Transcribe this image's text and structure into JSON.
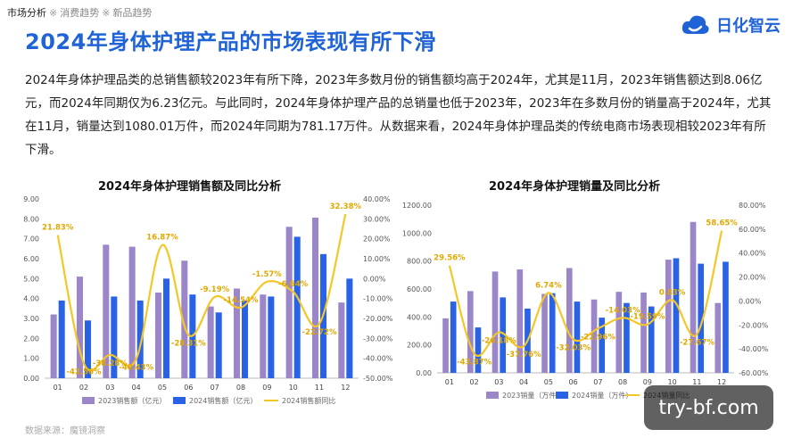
{
  "breadcrumb": {
    "current": "市场分析",
    "sep1": "※",
    "item2": "消费趋势",
    "sep2": "※",
    "item3": "新品趋势"
  },
  "title": "2024年身体护理产品的市场表现有所下滑",
  "logo": {
    "text": "日化智云"
  },
  "paragraph": "2024年身体护理品类的总销售额较2023年有所下降，2023年多数月份的销售额均高于2024年，尤其是11月，2023年销售额达到8.06亿元，而2024年同期仅为6.23亿元。与此同时，2024年身体护理产品的总销量也低于2023年，2023年在多数月份的销量高于2024年，尤其在11月，销量达到1080.01万件，而2024年同期为781.17万件。从数据来看，2024年身体护理品类的传统电商市场表现相较2023年有所下滑。",
  "source": "数据来源：魔镜洞察",
  "watermark": "try-bf.com",
  "colors": {
    "title_blue": "#1f63d6",
    "series_2023": "#9b86c9",
    "series_2024": "#2a62e6",
    "yoy_line": "#f3c727"
  },
  "chart_data": [
    {
      "type": "bar",
      "title": "2024年身体护理销售额及同比分析",
      "categories": [
        "01",
        "02",
        "03",
        "04",
        "05",
        "06",
        "07",
        "08",
        "09",
        "10",
        "11",
        "12"
      ],
      "series": [
        {
          "name": "2023销售额（亿元）",
          "type": "bar",
          "values": [
            3.2,
            5.1,
            6.7,
            6.6,
            4.3,
            5.9,
            3.6,
            4.5,
            4.2,
            7.6,
            8.06,
            3.8
          ]
        },
        {
          "name": "2024销售额（亿元）",
          "type": "bar",
          "values": [
            3.9,
            2.9,
            4.1,
            3.9,
            5.0,
            4.2,
            3.3,
            3.9,
            4.1,
            7.1,
            6.23,
            5.0
          ]
        },
        {
          "name": "2024销售额同比",
          "type": "line",
          "axis": "right",
          "values": [
            21.83,
            -42.56,
            -38.28,
            -40.43,
            16.87,
            -28.31,
            -9.19,
            -14.54,
            -1.57,
            -6.64,
            -22.72,
            32.38
          ]
        }
      ],
      "data_labels": [
        "21.83%",
        "-42.56%",
        "-38.28%",
        "-40.43%",
        "16.87%",
        "-28.31%",
        "-9.19%",
        "-14.54%",
        "-1.57%",
        "-6.64%",
        "-22.72%",
        "32.38%"
      ],
      "y_left": {
        "min": 0,
        "max": 9,
        "ticks": [
          "0.00",
          "1.00",
          "2.00",
          "3.00",
          "4.00",
          "5.00",
          "6.00",
          "7.00",
          "8.00",
          "9.00"
        ]
      },
      "y_right": {
        "min": -50,
        "max": 40,
        "ticks": [
          "-50.00%",
          "-40.00%",
          "-30.00%",
          "-20.00%",
          "-10.00%",
          "0.00%",
          "10.00%",
          "20.00%",
          "30.00%",
          "40.00%"
        ]
      },
      "legend_position": "bottom",
      "grid": false
    },
    {
      "type": "bar",
      "title": "2024年身体护理销量及同比分析",
      "categories": [
        "01",
        "02",
        "03",
        "04",
        "05",
        "06",
        "07",
        "08",
        "09",
        "10",
        "11",
        "12"
      ],
      "series": [
        {
          "name": "2023销量（万件）",
          "type": "bar",
          "values": [
            390,
            585,
            725,
            740,
            565,
            750,
            525,
            580,
            575,
            810,
            1080.01,
            500
          ]
        },
        {
          "name": "2024销量（万件）",
          "type": "bar",
          "values": [
            510,
            325,
            540,
            460,
            570,
            510,
            395,
            500,
            475,
            820,
            781.17,
            795
          ]
        },
        {
          "name": "2024销量同比",
          "type": "line",
          "axis": "right",
          "values": [
            29.56,
            -43.87,
            -26.18,
            -37.76,
            6.74,
            -32.03,
            -22.96,
            -14.03,
            -19.59,
            0.83,
            -27.67,
            58.65
          ]
        }
      ],
      "data_labels": [
        "29.56%",
        "-43.87%",
        "-26.18%",
        "-37.76%",
        "6.74%",
        "-32.03%",
        "-22.96%",
        "-14.03%",
        "-19.59%",
        "0.83%",
        "-27.67%",
        "58.65%"
      ],
      "y_left": {
        "min": 0,
        "max": 1200,
        "ticks": [
          "0.00",
          "200.00",
          "400.00",
          "600.00",
          "800.00",
          "1000.00",
          "1200.00"
        ]
      },
      "y_right": {
        "min": -60,
        "max": 80,
        "ticks": [
          "-60.00%",
          "-40.00%",
          "-20.00%",
          "0.00%",
          "20.00%",
          "40.00%",
          "60.00%",
          "80.00%"
        ]
      },
      "legend_position": "bottom",
      "grid": false
    }
  ]
}
